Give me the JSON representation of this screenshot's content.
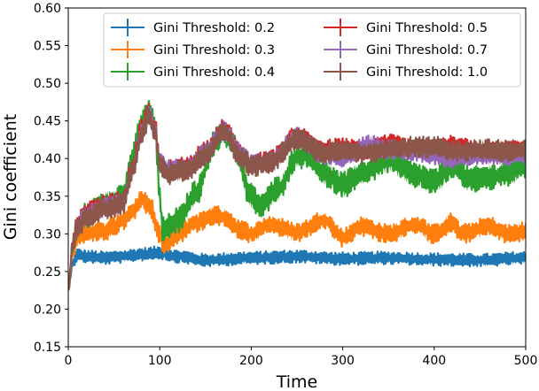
{
  "chart_data": {
    "type": "line",
    "title": "",
    "xlabel": "Time",
    "ylabel": "Gini coefficient",
    "xlim": [
      0,
      500
    ],
    "ylim": [
      0.15,
      0.6
    ],
    "xticks": [
      0,
      100,
      200,
      300,
      400,
      500
    ],
    "xtick_labels": [
      "0",
      "100",
      "200",
      "300",
      "400",
      "500"
    ],
    "yticks": [
      0.15,
      0.2,
      0.25,
      0.3,
      0.35,
      0.4,
      0.45,
      0.5,
      0.55,
      0.6
    ],
    "ytick_labels": [
      "0.15",
      "0.20",
      "0.25",
      "0.30",
      "0.35",
      "0.40",
      "0.45",
      "0.50",
      "0.55",
      "0.60"
    ],
    "grid": false,
    "legend_position": "top-right",
    "legend_columns": 2,
    "series": [
      {
        "name": "Gini Threshold: 0.2",
        "color": "#1f77b4",
        "band_halfwidth": 0.006,
        "x": [
          0,
          5,
          10,
          20,
          40,
          60,
          80,
          100,
          120,
          150,
          200,
          250,
          300,
          350,
          400,
          450,
          500
        ],
        "values": [
          0.225,
          0.262,
          0.272,
          0.27,
          0.268,
          0.27,
          0.273,
          0.275,
          0.27,
          0.265,
          0.268,
          0.27,
          0.267,
          0.268,
          0.266,
          0.265,
          0.268
        ]
      },
      {
        "name": "Gini Threshold: 0.3",
        "color": "#ff7f0e",
        "band_halfwidth": 0.009,
        "x": [
          0,
          5,
          10,
          20,
          40,
          50,
          60,
          70,
          80,
          90,
          100,
          105,
          120,
          140,
          160,
          170,
          190,
          200,
          220,
          250,
          280,
          300,
          320,
          350,
          380,
          400,
          420,
          430,
          460,
          480,
          500
        ],
        "values": [
          0.225,
          0.275,
          0.295,
          0.302,
          0.303,
          0.31,
          0.318,
          0.33,
          0.345,
          0.335,
          0.3,
          0.285,
          0.3,
          0.315,
          0.325,
          0.322,
          0.305,
          0.3,
          0.312,
          0.302,
          0.318,
          0.295,
          0.31,
          0.3,
          0.312,
          0.3,
          0.315,
          0.3,
          0.31,
          0.3,
          0.303
        ]
      },
      {
        "name": "Gini Threshold: 0.4",
        "color": "#2ca02c",
        "band_halfwidth": 0.012,
        "x": [
          0,
          5,
          10,
          20,
          40,
          60,
          70,
          80,
          88,
          95,
          100,
          103,
          120,
          140,
          160,
          170,
          180,
          200,
          210,
          230,
          250,
          260,
          280,
          300,
          320,
          350,
          380,
          400,
          420,
          440,
          460,
          480,
          500
        ],
        "values": [
          0.225,
          0.285,
          0.31,
          0.325,
          0.34,
          0.35,
          0.4,
          0.445,
          0.465,
          0.44,
          0.35,
          0.305,
          0.318,
          0.355,
          0.42,
          0.435,
          0.42,
          0.35,
          0.338,
          0.36,
          0.402,
          0.405,
          0.38,
          0.365,
          0.38,
          0.398,
          0.378,
          0.37,
          0.39,
          0.372,
          0.375,
          0.38,
          0.39
        ]
      },
      {
        "name": "Gini Threshold: 0.5",
        "color": "#d62728",
        "band_halfwidth": 0.009,
        "x": [
          0,
          5,
          10,
          20,
          40,
          60,
          70,
          80,
          88,
          95,
          100,
          110,
          130,
          150,
          170,
          190,
          200,
          220,
          250,
          280,
          300,
          320,
          350,
          380,
          400,
          420,
          430,
          450,
          480,
          500
        ],
        "values": [
          0.225,
          0.29,
          0.315,
          0.33,
          0.34,
          0.345,
          0.39,
          0.44,
          0.46,
          0.44,
          0.395,
          0.385,
          0.39,
          0.41,
          0.44,
          0.405,
          0.393,
          0.398,
          0.43,
          0.412,
          0.415,
          0.41,
          0.42,
          0.412,
          0.41,
          0.418,
          0.415,
          0.408,
          0.412,
          0.415
        ]
      },
      {
        "name": "Gini Threshold: 0.7",
        "color": "#9467bd",
        "band_halfwidth": 0.009,
        "x": [
          0,
          5,
          10,
          20,
          40,
          60,
          70,
          80,
          88,
          95,
          100,
          110,
          130,
          150,
          170,
          190,
          200,
          220,
          250,
          280,
          300,
          330,
          350,
          380,
          400,
          420,
          450,
          480,
          500
        ],
        "values": [
          0.225,
          0.288,
          0.312,
          0.325,
          0.335,
          0.342,
          0.388,
          0.435,
          0.46,
          0.438,
          0.395,
          0.385,
          0.388,
          0.408,
          0.438,
          0.405,
          0.393,
          0.395,
          0.428,
          0.405,
          0.402,
          0.418,
          0.412,
          0.41,
          0.405,
          0.4,
          0.405,
          0.402,
          0.405
        ]
      },
      {
        "name": "Gini Threshold: 1.0",
        "color": "#8c564b",
        "band_halfwidth": 0.01,
        "x": [
          0,
          5,
          10,
          20,
          40,
          60,
          70,
          80,
          88,
          95,
          100,
          110,
          130,
          150,
          170,
          190,
          200,
          220,
          250,
          280,
          300,
          320,
          350,
          380,
          400,
          420,
          450,
          480,
          500
        ],
        "values": [
          0.225,
          0.285,
          0.308,
          0.322,
          0.333,
          0.34,
          0.385,
          0.432,
          0.455,
          0.435,
          0.392,
          0.38,
          0.385,
          0.405,
          0.435,
          0.4,
          0.39,
          0.395,
          0.425,
          0.408,
          0.41,
          0.408,
          0.412,
          0.415,
          0.415,
          0.41,
          0.412,
          0.41,
          0.412
        ]
      }
    ]
  }
}
